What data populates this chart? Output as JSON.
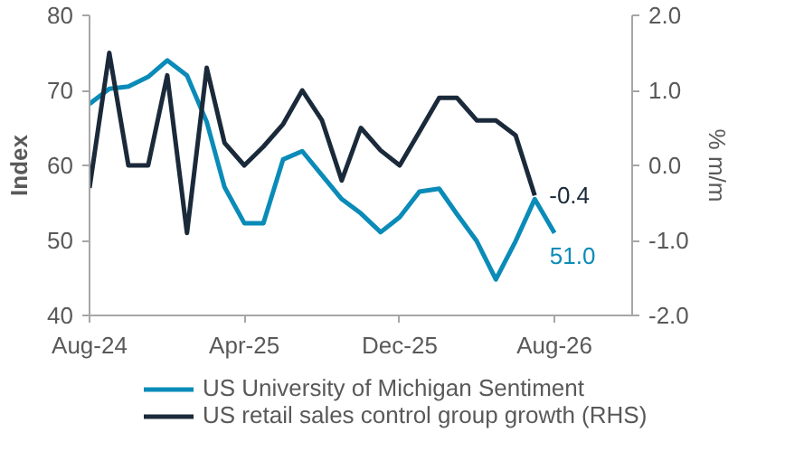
{
  "chart_data": {
    "type": "line",
    "ylabel": "Index",
    "y2label": "% m/m",
    "x": [
      "2024-08",
      "2024-09",
      "2024-10",
      "2024-11",
      "2024-12",
      "2025-01",
      "2025-02",
      "2025-03",
      "2025-04",
      "2025-05",
      "2025-06",
      "2025-07",
      "2025-08",
      "2025-09",
      "2025-10",
      "2025-11",
      "2025-12",
      "2026-01",
      "2026-02",
      "2026-03",
      "2026-04",
      "2026-05",
      "2026-06",
      "2026-07",
      "2026-08"
    ],
    "series": [
      {
        "name": "US University of Michigan Sentiment",
        "color": "#0a8bb8",
        "values": [
          68.2,
          70.2,
          70.5,
          71.8,
          74.0,
          72.0,
          65.8,
          57.1,
          52.3,
          52.3,
          60.8,
          61.9,
          58.7,
          55.5,
          53.6,
          51.1,
          53.1,
          56.5,
          56.9,
          53.5,
          49.9,
          44.8,
          49.9,
          55.5,
          51.0
        ],
        "value_labels": [
          null,
          null,
          null,
          null,
          null,
          null,
          null,
          null,
          null,
          null,
          null,
          null,
          null,
          null,
          null,
          null,
          null,
          null,
          null,
          null,
          null,
          null,
          null,
          null,
          "51.0"
        ]
      },
      {
        "name": "US retail sales control group growth (RHS)",
        "color": "#1b2a3a",
        "axis": "y2",
        "values": [
          -0.3,
          1.5,
          0.0,
          0.0,
          1.2,
          -0.9,
          1.3,
          0.3,
          0.0,
          0.25,
          0.55,
          1.0,
          0.6,
          -0.2,
          0.5,
          0.2,
          0.0,
          0.45,
          0.9,
          0.9,
          0.6,
          0.6,
          0.4,
          -0.4,
          null
        ],
        "value_labels": [
          null,
          null,
          null,
          null,
          null,
          null,
          null,
          null,
          null,
          null,
          null,
          null,
          null,
          null,
          null,
          null,
          null,
          null,
          null,
          null,
          null,
          null,
          null,
          "-0.4",
          null
        ]
      }
    ],
    "xlim": [
      "2024-08",
      "2026-12"
    ],
    "xticks": [
      {
        "value": "2024-08",
        "label": "Aug-24"
      },
      {
        "value": "2025-04",
        "label": "Apr-25"
      },
      {
        "value": "2025-12",
        "label": "Dec-25"
      },
      {
        "value": "2026-08",
        "label": "Aug-26"
      }
    ],
    "ylim": [
      40,
      80
    ],
    "yticks": [
      40,
      50,
      60,
      70,
      80
    ],
    "y2lim": [
      -2.0,
      2.0
    ],
    "y2ticks": [
      {
        "value": -2,
        "label": "-2.0"
      },
      {
        "value": -1,
        "label": "-1.0"
      },
      {
        "value": 0,
        "label": "0.0"
      },
      {
        "value": 1,
        "label": "1.0"
      },
      {
        "value": 2,
        "label": "2.0"
      }
    ],
    "grid": false,
    "legend": "bottom",
    "marker": "none",
    "line_style": "solid"
  }
}
